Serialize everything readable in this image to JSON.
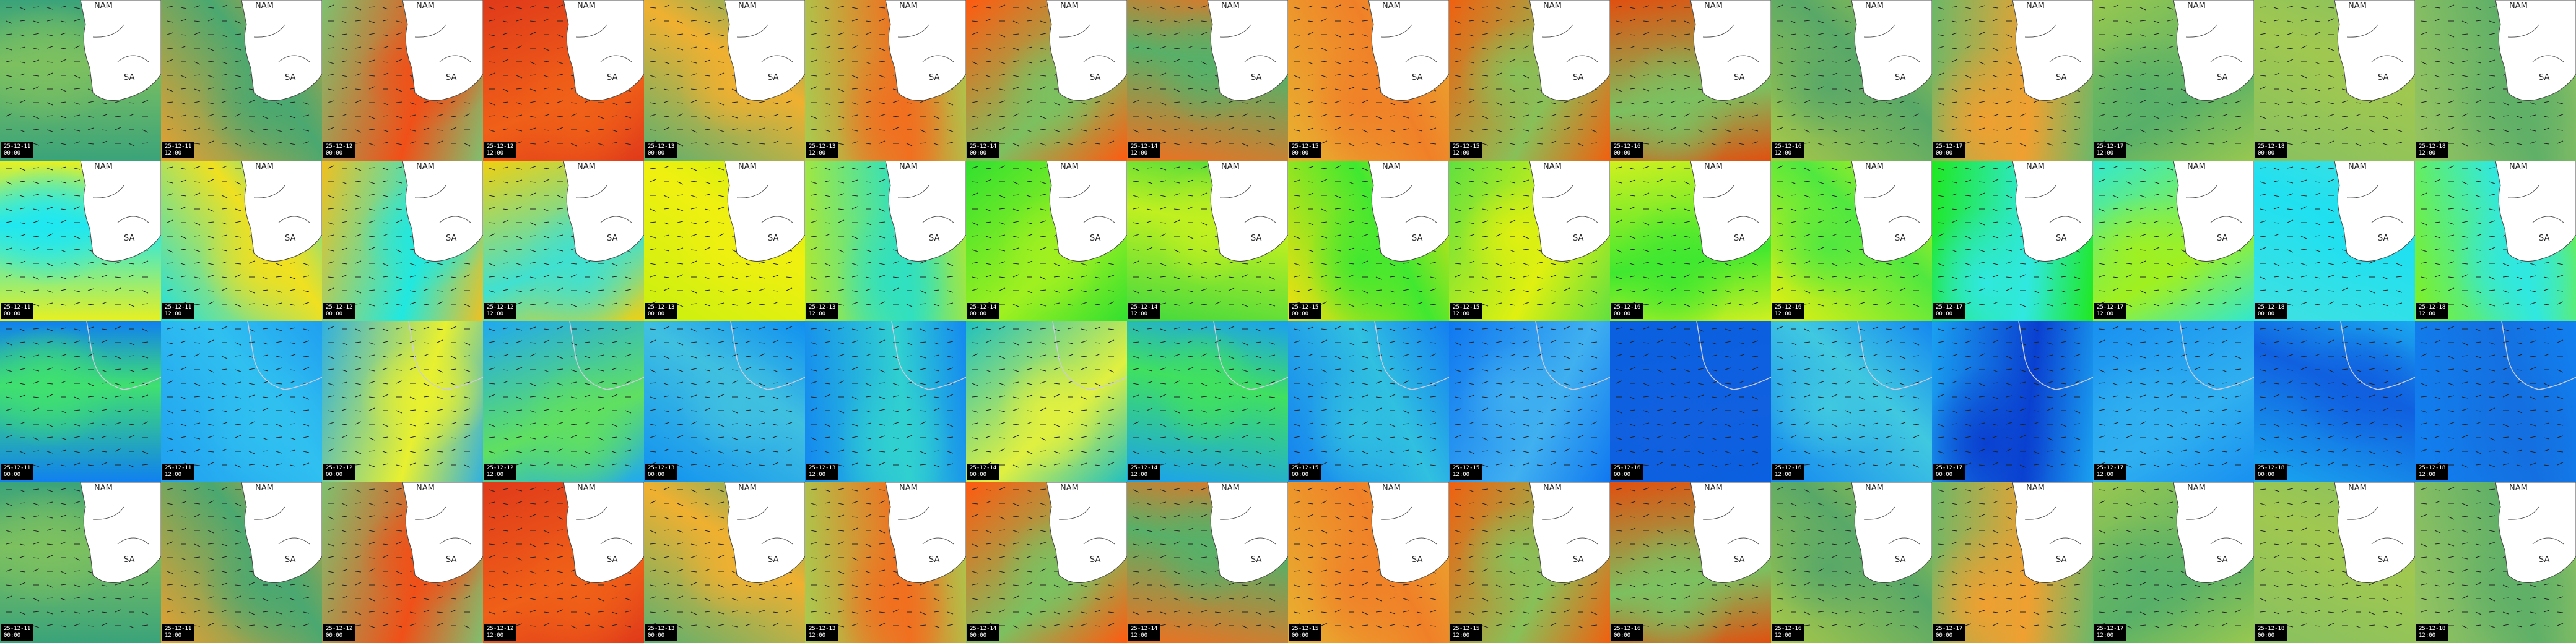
{
  "columns": [
    {
      "date": "25-12-11",
      "time": "00:00"
    },
    {
      "date": "25-12-11",
      "time": "12:00"
    },
    {
      "date": "25-12-12",
      "time": "00:00"
    },
    {
      "date": "25-12-12",
      "time": "12:00"
    },
    {
      "date": "25-12-13",
      "time": "00:00"
    },
    {
      "date": "25-12-13",
      "time": "12:00"
    },
    {
      "date": "25-12-14",
      "time": "00:00"
    },
    {
      "date": "25-12-14",
      "time": "12:00"
    },
    {
      "date": "25-12-15",
      "time": "00:00"
    },
    {
      "date": "25-12-15",
      "time": "12:00"
    },
    {
      "date": "25-12-16",
      "time": "00:00"
    },
    {
      "date": "25-12-16",
      "time": "12:00"
    },
    {
      "date": "25-12-17",
      "time": "00:00"
    },
    {
      "date": "25-12-17",
      "time": "12:00"
    },
    {
      "date": "25-12-18",
      "time": "00:00"
    },
    {
      "date": "25-12-18",
      "time": "12:00"
    }
  ],
  "map_labels": {
    "country_1": "NAM",
    "country_2": "SA"
  }
}
